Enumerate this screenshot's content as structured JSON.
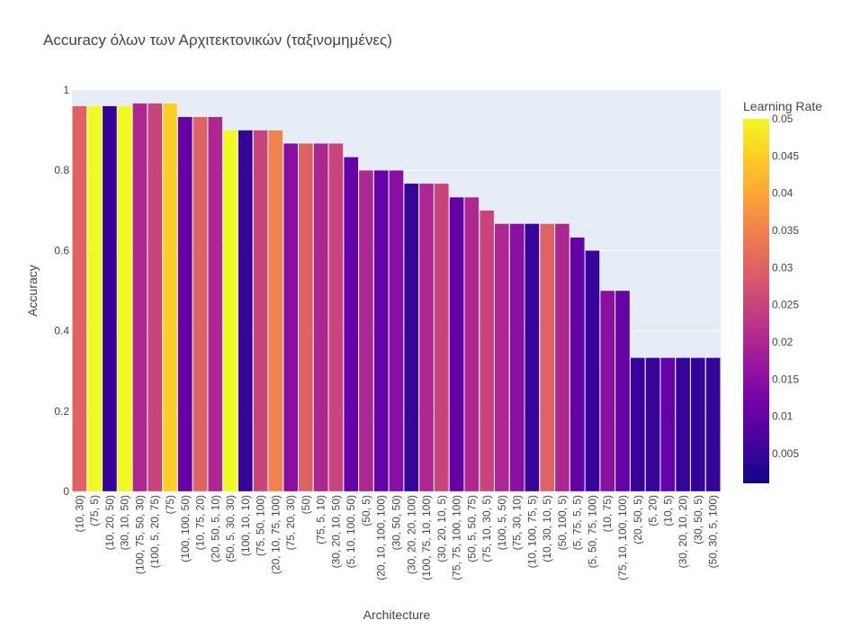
{
  "chart_data": {
    "type": "bar",
    "title": "Accuracy όλων των Αρχιτεκτονικών (ταξινομημένες)",
    "xlabel": "Architecture",
    "ylabel": "Accuracy",
    "ylim": [
      0,
      1
    ],
    "yticks": [
      "0",
      "0.2",
      "0.4",
      "0.6",
      "0.8",
      "1"
    ],
    "grid": true,
    "legend": "none",
    "colorbar": {
      "title": "Learning Rate",
      "range": [
        0.001,
        0.05
      ],
      "ticks": [
        "0.005",
        "0.01",
        "0.015",
        "0.02",
        "0.025",
        "0.03",
        "0.035",
        "0.04",
        "0.045",
        "0.05"
      ],
      "colorscale": [
        "#0d0887",
        "#46039f",
        "#7201a8",
        "#9c179e",
        "#bd3786",
        "#d8576b",
        "#ed7953",
        "#fb9f3a",
        "#fdca26",
        "#f0f921"
      ]
    },
    "categories": [
      "(10, 30)",
      "(75, 5)",
      "(10, 20, 50)",
      "(30, 10, 50)",
      "(100, 75, 50, 30)",
      "(100, 5, 20, 75)",
      "(75)",
      "(100, 100, 50)",
      "(10, 75, 20)",
      "(20, 50, 5, 10)",
      "(50, 5, 30, 30)",
      "(100, 10, 10)",
      "(75, 50, 100)",
      "(20, 10, 75, 100)",
      "(75, 20, 30)",
      "(50)",
      "(75, 5, 10)",
      "(30, 20, 10, 50)",
      "(5, 10, 100, 50)",
      "(50, 5)",
      "(20, 10, 100, 100)",
      "(30, 50, 50)",
      "(30, 20, 20, 100)",
      "(100, 75, 10, 100)",
      "(30, 20, 10, 5)",
      "(75, 75, 100, 100)",
      "(50, 5, 50, 75)",
      "(75, 10, 30, 5)",
      "(100, 5, 50)",
      "(75, 30, 10)",
      "(10, 100, 75, 5)",
      "(10, 30, 10, 5)",
      "(50, 100, 5)",
      "(5, 75, 5, 5)",
      "(5, 50, 75, 100)",
      "(10, 75)",
      "(75, 10, 100, 100)",
      "(20, 50, 5)",
      "(5, 20)",
      "(10, 5)",
      "(30, 20, 10, 20)",
      "(30, 50, 5)",
      "(50, 30, 5, 100)"
    ],
    "values": [
      0.96,
      0.96,
      0.96,
      0.96,
      0.967,
      0.967,
      0.967,
      0.933,
      0.933,
      0.933,
      0.9,
      0.9,
      0.9,
      0.9,
      0.867,
      0.867,
      0.867,
      0.867,
      0.833,
      0.8,
      0.8,
      0.8,
      0.767,
      0.767,
      0.767,
      0.733,
      0.733,
      0.7,
      0.667,
      0.667,
      0.667,
      0.667,
      0.667,
      0.633,
      0.6,
      0.5,
      0.5,
      0.333,
      0.333,
      0.333,
      0.333,
      0.333,
      0.333
    ],
    "learning_rate": [
      0.03,
      0.05,
      0.005,
      0.05,
      0.02,
      0.025,
      0.045,
      0.01,
      0.03,
      0.02,
      0.05,
      0.005,
      0.025,
      0.035,
      0.015,
      0.03,
      0.02,
      0.025,
      0.01,
      0.02,
      0.01,
      0.015,
      0.005,
      0.02,
      0.025,
      0.01,
      0.02,
      0.025,
      0.02,
      0.015,
      0.005,
      0.03,
      0.02,
      0.01,
      0.005,
      0.015,
      0.01,
      0.005,
      0.005,
      0.01,
      0.005,
      0.005,
      0.005
    ]
  }
}
